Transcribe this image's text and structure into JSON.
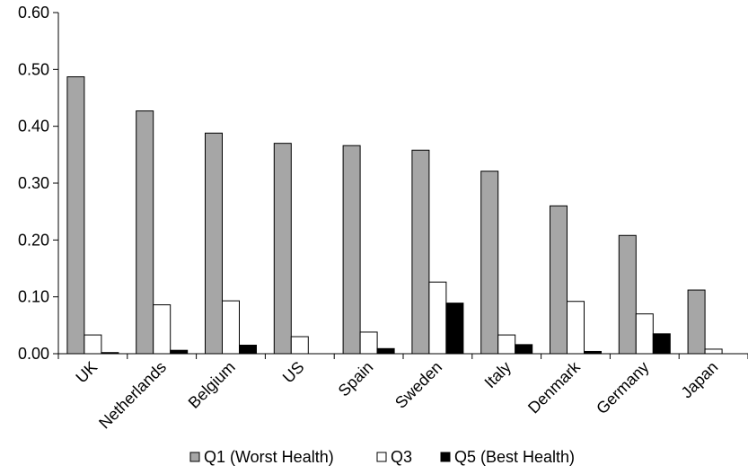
{
  "chart_data": {
    "type": "bar",
    "categories": [
      "UK",
      "Netherlands",
      "Belgium",
      "US",
      "Spain",
      "Sweden",
      "Italy",
      "Denmark",
      "Germany",
      "Japan"
    ],
    "series": [
      {
        "name": "Q1 (Worst Health)",
        "color": "#a6a6a6",
        "values": [
          0.487,
          0.427,
          0.388,
          0.37,
          0.366,
          0.358,
          0.321,
          0.26,
          0.208,
          0.112
        ]
      },
      {
        "name": "Q3",
        "color": "#ffffff",
        "values": [
          0.033,
          0.086,
          0.093,
          0.03,
          0.038,
          0.126,
          0.033,
          0.092,
          0.07,
          0.008
        ]
      },
      {
        "name": "Q5 (Best Health)",
        "color": "#000000",
        "values": [
          0.002,
          0.006,
          0.015,
          0.0,
          0.009,
          0.089,
          0.016,
          0.004,
          0.035,
          0.0
        ]
      }
    ],
    "yticks": [
      "0.00",
      "0.10",
      "0.20",
      "0.30",
      "0.40",
      "0.50",
      "0.60"
    ],
    "ylim": [
      0,
      0.6
    ],
    "grid": false,
    "legend_position": "bottom",
    "title": "",
    "xlabel": "",
    "ylabel": ""
  }
}
